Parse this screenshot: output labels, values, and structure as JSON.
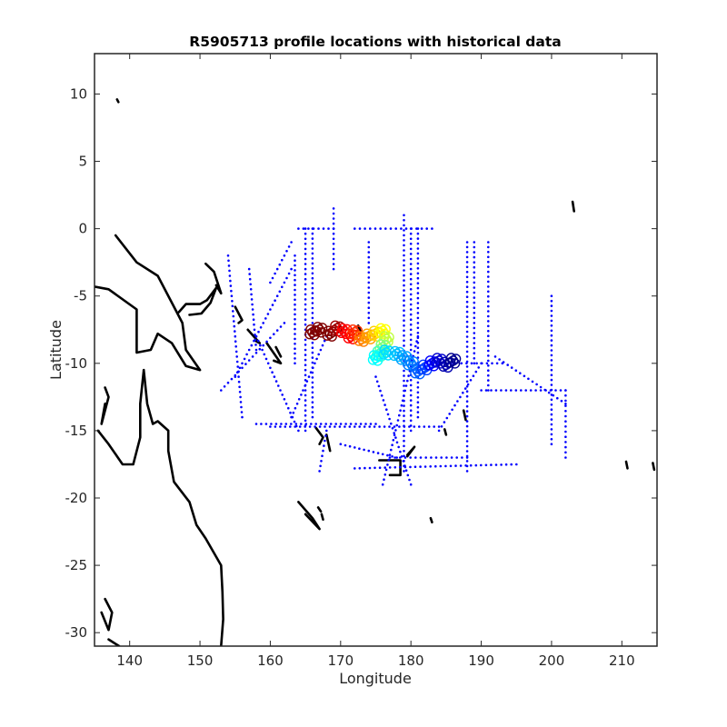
{
  "chart_data": {
    "type": "scatter",
    "title": "R5905713 profile locations with historical data",
    "xlabel": "Longitude",
    "ylabel": "Latitude",
    "xlim": [
      135,
      215
    ],
    "ylim": [
      -31,
      13
    ],
    "xticks": [
      140,
      150,
      160,
      170,
      180,
      190,
      200,
      210
    ],
    "yticks": [
      10,
      5,
      0,
      -5,
      -10,
      -15,
      -20,
      -25,
      -30
    ],
    "grid": false,
    "legend": "none",
    "colors": {
      "historical": "#0000ff",
      "coast": "#000000",
      "axis": "#262626"
    },
    "colormap": [
      "#00008f",
      "#0000ff",
      "#007fff",
      "#00ffff",
      "#7fff7f",
      "#ffff00",
      "#ff7f00",
      "#ff0000",
      "#800000"
    ],
    "historical_tracks": [
      [
        [
          164,
          0
        ],
        [
          169,
          0
        ]
      ],
      [
        [
          169,
          1.5
        ],
        [
          169,
          -3
        ]
      ],
      [
        [
          165,
          0
        ],
        [
          165,
          -15
        ]
      ],
      [
        [
          166,
          0
        ],
        [
          166,
          -14
        ]
      ],
      [
        [
          163.5,
          -2
        ],
        [
          163.5,
          -10
        ]
      ],
      [
        [
          172,
          0
        ],
        [
          183,
          0
        ]
      ],
      [
        [
          179,
          1
        ],
        [
          179,
          -18
        ]
      ],
      [
        [
          180,
          0
        ],
        [
          180,
          -15
        ]
      ],
      [
        [
          181,
          0
        ],
        [
          181,
          -14
        ]
      ],
      [
        [
          174,
          -1
        ],
        [
          174,
          -7
        ]
      ],
      [
        [
          188,
          -1
        ],
        [
          188,
          -18
        ]
      ],
      [
        [
          189,
          -1
        ],
        [
          189,
          -10
        ]
      ],
      [
        [
          191,
          -1
        ],
        [
          191,
          -12
        ]
      ],
      [
        [
          200,
          -5
        ],
        [
          200,
          -16
        ]
      ],
      [
        [
          202,
          -12
        ],
        [
          202,
          -17
        ]
      ],
      [
        [
          190,
          -12
        ],
        [
          202,
          -12
        ]
      ],
      [
        [
          158,
          -14.5
        ],
        [
          175,
          -14.5
        ]
      ],
      [
        [
          160,
          -14.7
        ],
        [
          184,
          -14.7
        ]
      ],
      [
        [
          172,
          -17.8
        ],
        [
          195,
          -17.5
        ]
      ],
      [
        [
          185,
          -10
        ],
        [
          193,
          -10
        ]
      ],
      [
        [
          192,
          -9.5
        ],
        [
          202,
          -13
        ]
      ],
      [
        [
          153,
          -12
        ],
        [
          162,
          -7
        ]
      ],
      [
        [
          155,
          -11
        ],
        [
          163,
          -3
        ]
      ],
      [
        [
          160,
          -4
        ],
        [
          163,
          -1
        ]
      ],
      [
        [
          154,
          -2
        ],
        [
          156,
          -14
        ]
      ],
      [
        [
          157,
          -3
        ],
        [
          158,
          -9
        ]
      ],
      [
        [
          175,
          -11
        ],
        [
          180,
          -19
        ]
      ],
      [
        [
          181,
          -8
        ],
        [
          176,
          -19
        ]
      ],
      [
        [
          177,
          -17
        ],
        [
          188,
          -17
        ]
      ],
      [
        [
          167,
          -18
        ],
        [
          168,
          -15
        ]
      ],
      [
        [
          158,
          -8
        ],
        [
          164,
          -15
        ]
      ],
      [
        [
          184,
          -15
        ],
        [
          190,
          -10
        ]
      ],
      [
        [
          168,
          -8
        ],
        [
          163,
          -14
        ]
      ],
      [
        [
          170,
          -16
        ],
        [
          178,
          -17
        ]
      ]
    ],
    "float_track": [
      {
        "lon": 166.0,
        "lat": -7.7,
        "color": "#800000"
      },
      {
        "lon": 167.0,
        "lat": -7.5,
        "color": "#800000"
      },
      {
        "lon": 168.5,
        "lat": -7.8,
        "color": "#800000"
      },
      {
        "lon": 169.5,
        "lat": -7.4,
        "color": "#a00000"
      },
      {
        "lon": 170.5,
        "lat": -7.6,
        "color": "#ff0000"
      },
      {
        "lon": 171.5,
        "lat": -8.0,
        "color": "#ff0000"
      },
      {
        "lon": 172.0,
        "lat": -7.7,
        "color": "#ff3000"
      },
      {
        "lon": 173.0,
        "lat": -8.2,
        "color": "#ff7f00"
      },
      {
        "lon": 174.0,
        "lat": -8.0,
        "color": "#ffa000"
      },
      {
        "lon": 175.0,
        "lat": -7.8,
        "color": "#ffd000"
      },
      {
        "lon": 176.0,
        "lat": -7.6,
        "color": "#ffff00"
      },
      {
        "lon": 176.5,
        "lat": -8.2,
        "color": "#bfff3f"
      },
      {
        "lon": 176.0,
        "lat": -8.8,
        "color": "#7fff7f"
      },
      {
        "lon": 175.5,
        "lat": -9.3,
        "color": "#3fffbf"
      },
      {
        "lon": 175.0,
        "lat": -9.6,
        "color": "#00ffff"
      },
      {
        "lon": 176.5,
        "lat": -9.2,
        "color": "#00e0ff"
      },
      {
        "lon": 178.0,
        "lat": -9.3,
        "color": "#00c0ff"
      },
      {
        "lon": 179.0,
        "lat": -9.6,
        "color": "#00a0ff"
      },
      {
        "lon": 180.0,
        "lat": -10.0,
        "color": "#007fff"
      },
      {
        "lon": 181.0,
        "lat": -10.6,
        "color": "#0060ff"
      },
      {
        "lon": 182.0,
        "lat": -10.3,
        "color": "#0040ff"
      },
      {
        "lon": 183.0,
        "lat": -10.0,
        "color": "#0000ff"
      },
      {
        "lon": 184.0,
        "lat": -9.8,
        "color": "#0000d0"
      },
      {
        "lon": 185.0,
        "lat": -10.1,
        "color": "#0000b0"
      },
      {
        "lon": 186.0,
        "lat": -9.8,
        "color": "#00008f"
      }
    ],
    "coastlines": [
      [
        [
          138,
          -0.5
        ],
        [
          141,
          -2.5
        ],
        [
          144,
          -3.5
        ],
        [
          146,
          -5.5
        ],
        [
          147.5,
          -7
        ],
        [
          148,
          -9
        ],
        [
          150,
          -10.5
        ],
        [
          148,
          -10.2
        ],
        [
          146,
          -8.5
        ],
        [
          144,
          -7.8
        ],
        [
          143,
          -9
        ],
        [
          141,
          -9.2
        ],
        [
          141,
          -6
        ],
        [
          137,
          -4.5
        ],
        [
          135,
          -4.3
        ]
      ],
      [
        [
          147,
          -6.2
        ],
        [
          148,
          -5.6
        ],
        [
          150,
          -5.6
        ],
        [
          151,
          -5.3
        ],
        [
          152.3,
          -4.4
        ],
        [
          151.5,
          -5.5
        ],
        [
          150.2,
          -6.3
        ],
        [
          148.5,
          -6.4
        ]
      ],
      [
        [
          150.8,
          -2.6
        ],
        [
          152,
          -3.2
        ],
        [
          153,
          -4.8
        ],
        [
          152.3,
          -4.2
        ]
      ],
      [
        [
          155,
          -5.8
        ],
        [
          156,
          -6.8
        ],
        [
          155.5,
          -7
        ]
      ],
      [
        [
          156.8,
          -7.5
        ],
        [
          158.5,
          -8.5
        ],
        [
          157.8,
          -8.3
        ]
      ],
      [
        [
          159.5,
          -8.5
        ],
        [
          161.5,
          -10
        ],
        [
          160.5,
          -9.8
        ]
      ],
      [
        [
          160.8,
          -8.8
        ],
        [
          161.5,
          -9.5
        ]
      ],
      [
        [
          166.5,
          -14.8
        ],
        [
          167.5,
          -15.5
        ],
        [
          167,
          -16
        ]
      ],
      [
        [
          168,
          -15.3
        ],
        [
          168.5,
          -16.5
        ]
      ],
      [
        [
          175.5,
          -17.2
        ],
        [
          178.5,
          -17.2
        ],
        [
          178.5,
          -18.3
        ],
        [
          177,
          -18.3
        ]
      ],
      [
        [
          179.5,
          -16.8
        ],
        [
          180.5,
          -16.2
        ],
        [
          179.5,
          -16.9
        ]
      ],
      [
        [
          164,
          -20.3
        ],
        [
          166,
          -21.5
        ],
        [
          167,
          -22.3
        ],
        [
          165,
          -21.2
        ]
      ],
      [
        [
          167.3,
          -21.2
        ],
        [
          167.5,
          -21.6
        ]
      ],
      [
        [
          166.8,
          -20.7
        ],
        [
          167.2,
          -21
        ]
      ],
      [
        [
          142,
          -10.5
        ],
        [
          142.5,
          -13
        ],
        [
          143.3,
          -14.5
        ],
        [
          144,
          -14.3
        ],
        [
          145.5,
          -15
        ],
        [
          145.5,
          -16.5
        ],
        [
          146.3,
          -18.8
        ],
        [
          148.5,
          -20.3
        ],
        [
          149.5,
          -22
        ],
        [
          150.8,
          -23
        ],
        [
          153,
          -25
        ],
        [
          153.2,
          -27
        ],
        [
          153.3,
          -29
        ],
        [
          153,
          -31
        ]
      ],
      [
        [
          142,
          -10.5
        ],
        [
          141.5,
          -13
        ],
        [
          141.5,
          -15.5
        ],
        [
          140.5,
          -17.5
        ],
        [
          139,
          -17.5
        ],
        [
          137,
          -16
        ],
        [
          135.5,
          -15
        ]
      ],
      [
        [
          136.5,
          -11.8
        ],
        [
          137,
          -12.5
        ],
        [
          136,
          -14.5
        ],
        [
          136.5,
          -13
        ]
      ],
      [
        [
          136.5,
          -27.5
        ],
        [
          137.5,
          -28.5
        ],
        [
          137,
          -29.8
        ],
        [
          136,
          -28.5
        ]
      ],
      [
        [
          137,
          -30.5
        ],
        [
          138.5,
          -31
        ]
      ],
      [
        [
          138.2,
          9.6
        ],
        [
          138.4,
          9.4
        ]
      ],
      [
        [
          203,
          2
        ],
        [
          203.2,
          1.3
        ]
      ],
      [
        [
          210.6,
          -17.3
        ],
        [
          210.8,
          -17.8
        ]
      ],
      [
        [
          214.4,
          -17.4
        ],
        [
          214.6,
          -17.9
        ]
      ],
      [
        [
          184.8,
          -14.9
        ],
        [
          185,
          -15.3
        ]
      ],
      [
        [
          182.8,
          -21.5
        ],
        [
          183,
          -21.8
        ]
      ],
      [
        [
          187.5,
          -13.5
        ],
        [
          187.8,
          -14.2
        ]
      ],
      [
        [
          172.5,
          -7.2
        ],
        [
          172.8,
          -7.6
        ]
      ]
    ]
  }
}
